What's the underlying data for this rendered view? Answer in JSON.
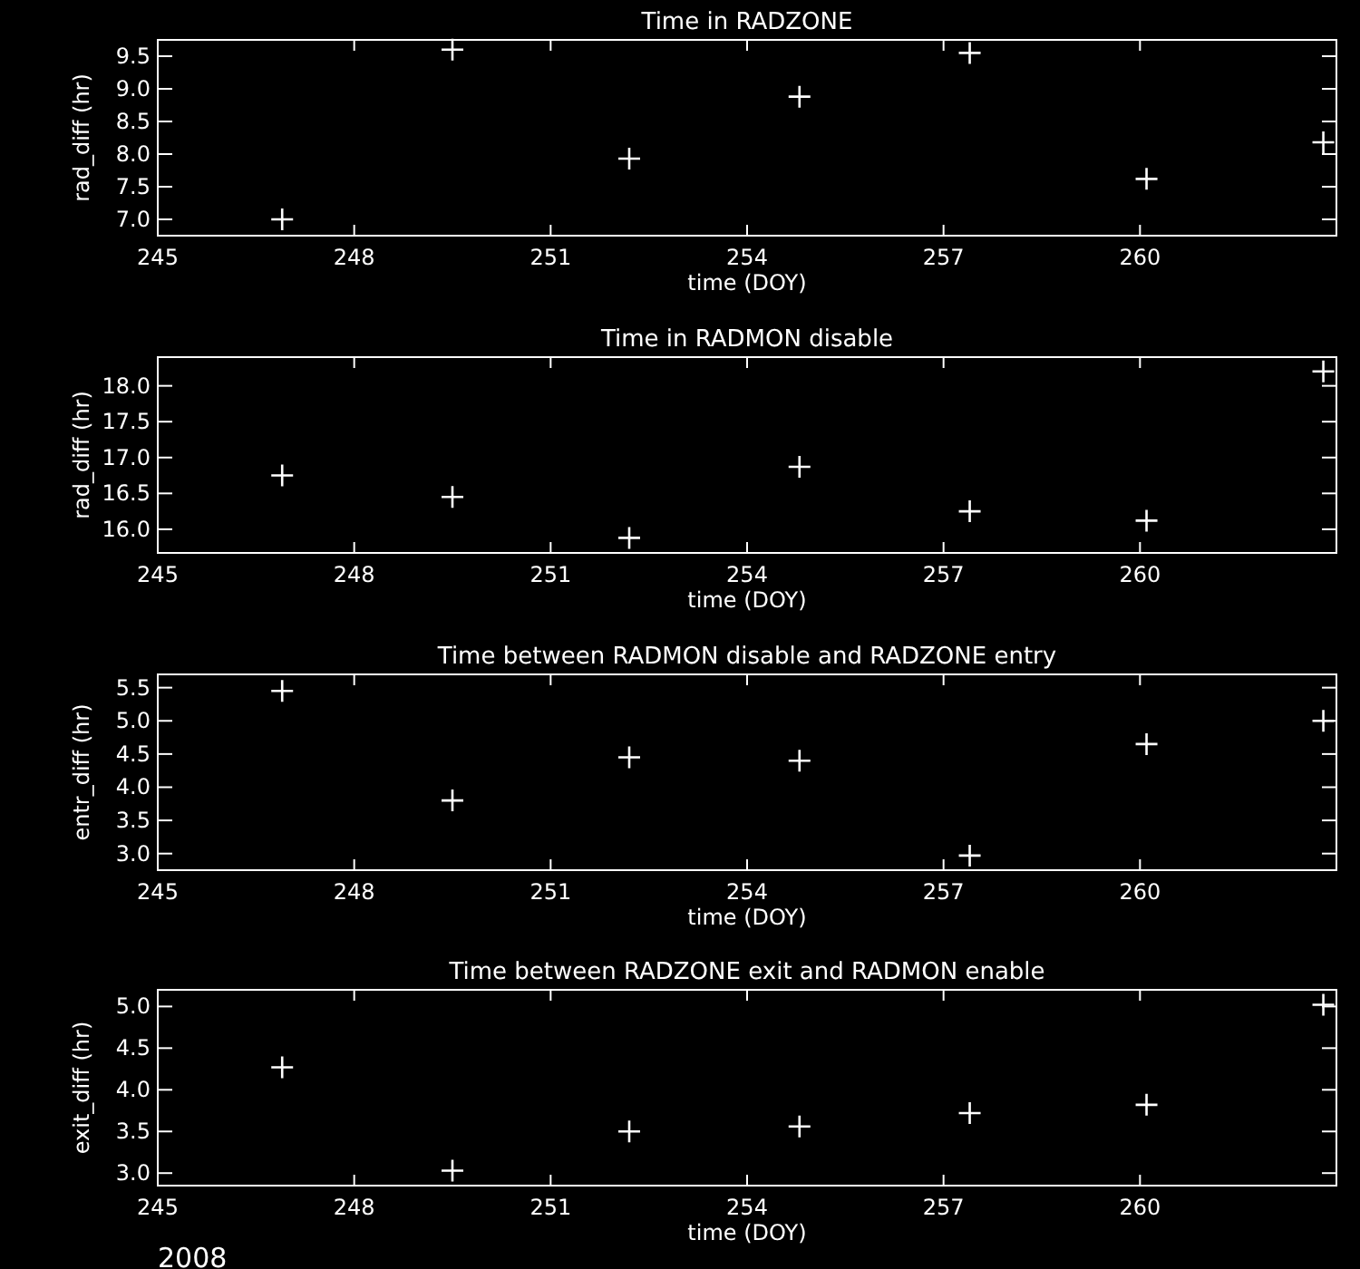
{
  "chart_data": [
    {
      "type": "scatter",
      "title": "Time in RADZONE",
      "xlabel": "time (DOY)",
      "ylabel": "rad_diff (hr)",
      "marker": "cross",
      "color": "#ffffff",
      "x": [
        246.9,
        249.5,
        252.2,
        254.8,
        257.4,
        260.1,
        262.8
      ],
      "values": [
        7.0,
        9.6,
        7.93,
        8.88,
        9.55,
        7.62,
        8.18
      ],
      "xlim": [
        245,
        263
      ],
      "xticks": [
        245,
        248,
        251,
        254,
        257,
        260
      ],
      "ylim": [
        6.75,
        9.75
      ],
      "yticks": [
        {
          "value": 7,
          "label": "7.0"
        },
        {
          "value": 7.5,
          "label": "7.5"
        },
        {
          "value": 8,
          "label": "8.0"
        },
        {
          "value": 8.5,
          "label": "8.5"
        },
        {
          "value": 9,
          "label": "9.0"
        },
        {
          "value": 9.5,
          "label": "9.5"
        }
      ]
    },
    {
      "type": "scatter",
      "title": "Time in RADMON disable",
      "xlabel": "time (DOY)",
      "ylabel": "rad_diff (hr)",
      "marker": "cross",
      "color": "#ffffff",
      "x": [
        246.9,
        249.5,
        252.2,
        254.8,
        257.4,
        260.1,
        262.8
      ],
      "values": [
        16.75,
        16.45,
        15.88,
        16.87,
        16.25,
        16.12,
        18.2
      ],
      "xlim": [
        245,
        263
      ],
      "xticks": [
        245,
        248,
        251,
        254,
        257,
        260
      ],
      "ylim": [
        15.67,
        18.4
      ],
      "yticks": [
        {
          "value": 16,
          "label": "16.0"
        },
        {
          "value": 16.5,
          "label": "16.5"
        },
        {
          "value": 17,
          "label": "17.0"
        },
        {
          "value": 17.5,
          "label": "17.5"
        },
        {
          "value": 18,
          "label": "18.0"
        }
      ]
    },
    {
      "type": "scatter",
      "title": "Time between RADMON disable and RADZONE entry",
      "xlabel": "time (DOY)",
      "ylabel": "entr_diff (hr)",
      "marker": "cross",
      "color": "#ffffff",
      "x": [
        246.9,
        249.5,
        252.2,
        254.8,
        257.4,
        260.1,
        262.8
      ],
      "values": [
        5.45,
        3.8,
        4.45,
        4.4,
        2.97,
        4.65,
        5.0
      ],
      "xlim": [
        245,
        263
      ],
      "xticks": [
        245,
        248,
        251,
        254,
        257,
        260
      ],
      "ylim": [
        2.75,
        5.7
      ],
      "yticks": [
        {
          "value": 3,
          "label": "3.0"
        },
        {
          "value": 3.5,
          "label": "3.5"
        },
        {
          "value": 4,
          "label": "4.0"
        },
        {
          "value": 4.5,
          "label": "4.5"
        },
        {
          "value": 5,
          "label": "5.0"
        },
        {
          "value": 5.5,
          "label": "5.5"
        }
      ]
    },
    {
      "type": "scatter",
      "title": "Time between RADZONE exit and RADMON enable",
      "xlabel": "time (DOY)",
      "ylabel": "exit_diff (hr)",
      "marker": "cross",
      "color": "#ffffff",
      "x": [
        246.9,
        249.5,
        252.2,
        254.8,
        257.4,
        260.1,
        262.8
      ],
      "values": [
        4.27,
        3.03,
        3.5,
        3.56,
        3.72,
        3.82,
        5.02
      ],
      "xlim": [
        245,
        263
      ],
      "xticks": [
        245,
        248,
        251,
        254,
        257,
        260
      ],
      "ylim": [
        2.85,
        5.2
      ],
      "yticks": [
        {
          "value": 3,
          "label": "3.0"
        },
        {
          "value": 3.5,
          "label": "3.5"
        },
        {
          "value": 4,
          "label": "4.0"
        },
        {
          "value": 4.5,
          "label": "4.5"
        },
        {
          "value": 5,
          "label": "5.0"
        }
      ],
      "annotations": [
        "2008"
      ]
    }
  ]
}
